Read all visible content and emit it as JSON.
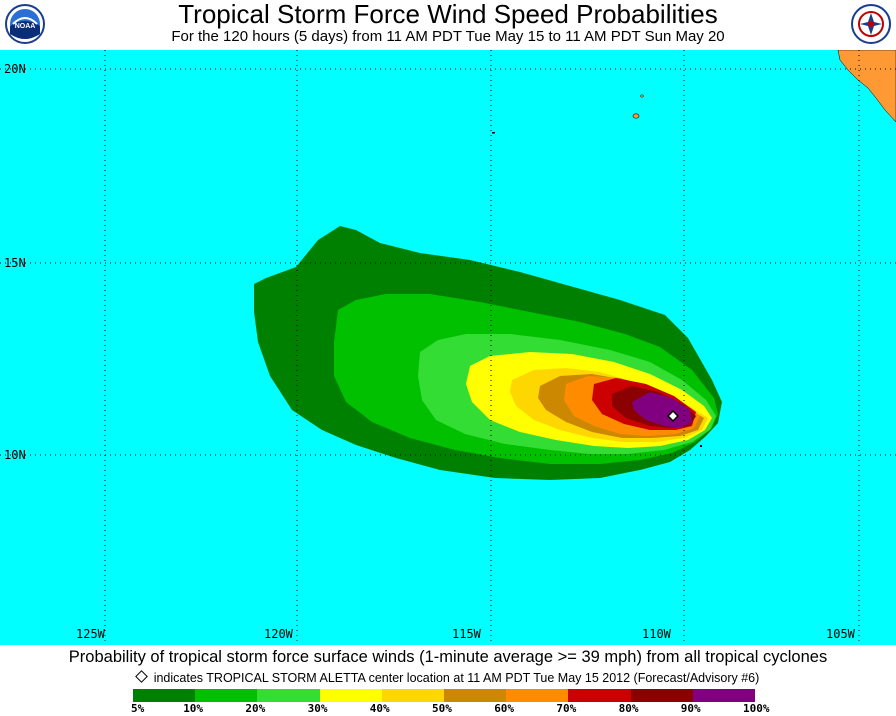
{
  "header": {
    "title": "Tropical Storm Force Wind Speed Probabilities",
    "subtitle": "For the 120 hours (5 days) from 11 AM PDT Tue May 15 to 11 AM PDT Sun May 20",
    "logo_left": "noaa-logo",
    "logo_right": "national-weather-service-logo"
  },
  "map": {
    "ocean_color": "#00ffff",
    "land_color": "#ff9933",
    "lat_labels": [
      "20N",
      "15N",
      "10N"
    ],
    "lon_labels": [
      "125W",
      "120W",
      "115W",
      "110W",
      "105W"
    ],
    "storm_center": {
      "lat": 11.0,
      "lon": -110.0
    }
  },
  "footer": {
    "caption": "Probability of tropical storm force surface winds (1-minute average >= 39 mph) from all tropical cyclones",
    "indicator": "indicates TROPICAL STORM ALETTA center location at 11 AM PDT Tue May 15 2012 (Forecast/Advisory #6)"
  },
  "legend": {
    "colors": [
      "#008000",
      "#00c000",
      "#33dd33",
      "#ffff00",
      "#ffd700",
      "#cc8800",
      "#ff8c00",
      "#cc0000",
      "#8b0000",
      "#800080"
    ],
    "ticks": [
      "5%",
      "10%",
      "20%",
      "30%",
      "40%",
      "50%",
      "60%",
      "70%",
      "80%",
      "90%",
      "100%"
    ]
  }
}
